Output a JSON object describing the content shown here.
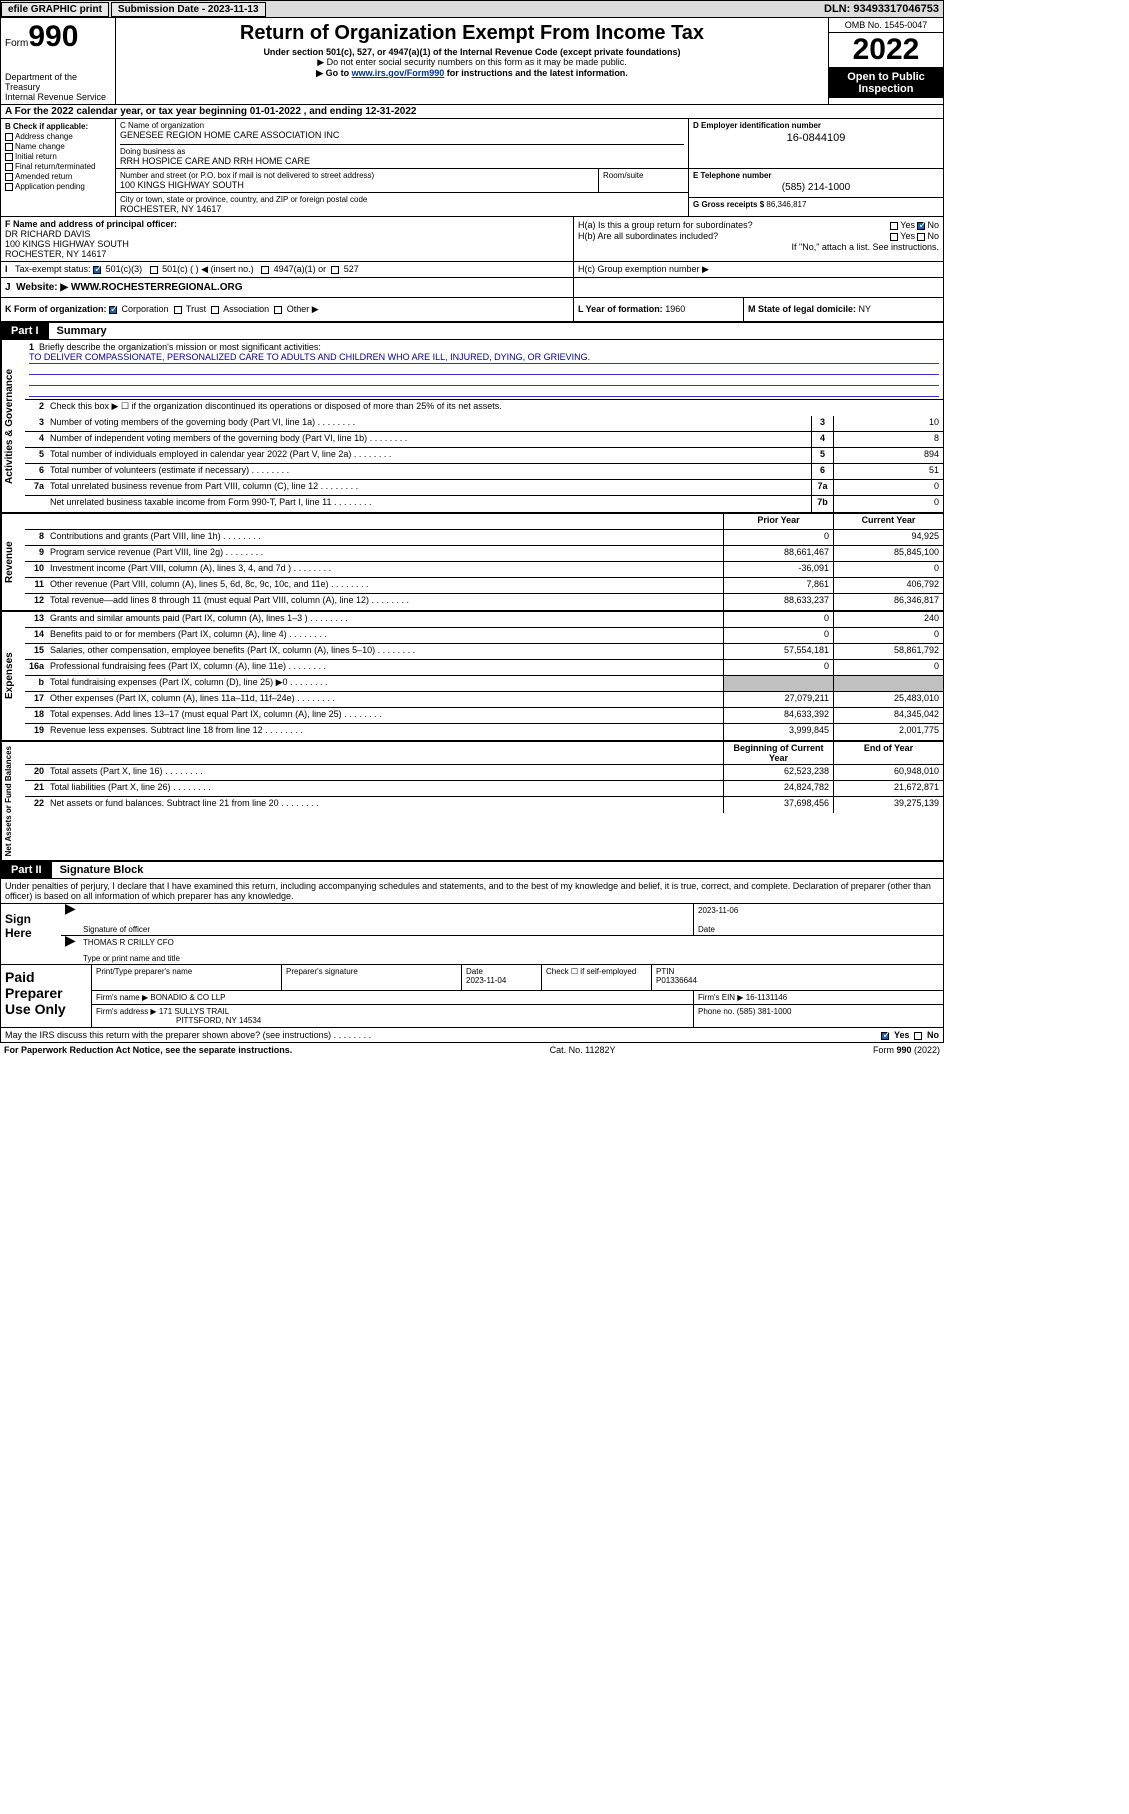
{
  "topbar": {
    "efile": "efile GRAPHIC print",
    "subdate_label": "Submission Date - 2023-11-13",
    "dln": "DLN: 93493317046753"
  },
  "header": {
    "form_label": "Form",
    "form_num": "990",
    "dept1": "Department of the Treasury",
    "dept2": "Internal Revenue Service",
    "title": "Return of Organization Exempt From Income Tax",
    "sub1": "Under section 501(c), 527, or 4947(a)(1) of the Internal Revenue Code (except private foundations)",
    "sub2": "▶ Do not enter social security numbers on this form as it may be made public.",
    "sub3a": "▶ Go to ",
    "sub3link": "www.irs.gov/Form990",
    "sub3b": " for instructions and the latest information.",
    "omb": "OMB No. 1545-0047",
    "year": "2022",
    "open1": "Open to Public",
    "open2": "Inspection"
  },
  "row_a": "A For the 2022 calendar year, or tax year beginning 01-01-2022    , and ending 12-31-2022",
  "col_b": {
    "hdr": "B Check if applicable:",
    "addr": "Address change",
    "name": "Name change",
    "init": "Initial return",
    "final": "Final return/terminated",
    "amend": "Amended return",
    "app": "Application pending"
  },
  "name_c": {
    "lbl": "C Name of organization",
    "val": "GENESEE REGION HOME CARE ASSOCIATION INC",
    "dba_lbl": "Doing business as",
    "dba": "RRH HOSPICE CARE AND RRH HOME CARE"
  },
  "ein": {
    "lbl": "D Employer identification number",
    "val": "16-0844109"
  },
  "addr": {
    "street_lbl": "Number and street (or P.O. box if mail is not delivered to street address)",
    "street": "100 KINGS HIGHWAY SOUTH",
    "room_lbl": "Room/suite",
    "city_lbl": "City or town, state or province, country, and ZIP or foreign postal code",
    "city": "ROCHESTER, NY  14617"
  },
  "phone": {
    "lbl": "E Telephone number",
    "val": "(585) 214-1000"
  },
  "gross": {
    "lbl": "G Gross receipts $",
    "val": "86,346,817"
  },
  "f": {
    "lbl": "F  Name and address of principal officer:",
    "l1": "DR RICHARD DAVIS",
    "l2": "100 KINGS HIGHWAY SOUTH",
    "l3": "ROCHESTER, NY  14617"
  },
  "h": {
    "a": "H(a)  Is this a group return for subordinates?",
    "a_yes": "Yes",
    "a_no": "No",
    "b": "H(b)  Are all subordinates included?",
    "b_yes": "Yes",
    "b_no": "No",
    "b2": "If \"No,\" attach a list. See instructions.",
    "c": "H(c)  Group exemption number ▶"
  },
  "taxexempt": {
    "lbl": "Tax-exempt status:",
    "o1": "501(c)(3)",
    "o2": "501(c) (  ) ◀ (insert no.)",
    "o3": "4947(a)(1) or",
    "o4": "527"
  },
  "j": {
    "lbl": "J",
    "web_lbl": "Website: ▶",
    "web": "WWW.ROCHESTERREGIONAL.ORG"
  },
  "k": {
    "lbl": "K Form of organization:",
    "corp": "Corporation",
    "trust": "Trust",
    "assoc": "Association",
    "other": "Other ▶"
  },
  "l": {
    "lbl": "L Year of formation:",
    "val": "1960"
  },
  "m": {
    "lbl": "M State of legal domicile:",
    "val": "NY"
  },
  "part1": {
    "lbl": "Part I",
    "title": "Summary"
  },
  "mission": {
    "q": "Briefly describe the organization's mission or most significant activities:",
    "txt": "TO DELIVER COMPASSIONATE, PERSONALIZED CARE TO ADULTS AND CHILDREN WHO ARE ILL, INJURED, DYING, OR GRIEVING."
  },
  "vtab": {
    "gov": "Activities & Governance",
    "rev": "Revenue",
    "exp": "Expenses",
    "net": "Net Assets or Fund Balances"
  },
  "lines_gov": [
    {
      "n": "2",
      "t": "Check this box ▶ ☐  if the organization discontinued its operations or disposed of more than 25% of its net assets."
    },
    {
      "n": "3",
      "t": "Number of voting members of the governing body (Part VI, line 1a)",
      "b": "3",
      "v": "10"
    },
    {
      "n": "4",
      "t": "Number of independent voting members of the governing body (Part VI, line 1b)",
      "b": "4",
      "v": "8"
    },
    {
      "n": "5",
      "t": "Total number of individuals employed in calendar year 2022 (Part V, line 2a)",
      "b": "5",
      "v": "894"
    },
    {
      "n": "6",
      "t": "Total number of volunteers (estimate if necessary)",
      "b": "6",
      "v": "51"
    },
    {
      "n": "7a",
      "t": "Total unrelated business revenue from Part VIII, column (C), line 12",
      "b": "7a",
      "v": "0"
    },
    {
      "n": "",
      "t": "Net unrelated business taxable income from Form 990-T, Part I, line 11",
      "b": "7b",
      "v": "0"
    }
  ],
  "col_hdrs": {
    "prior": "Prior Year",
    "curr": "Current Year",
    "beg": "Beginning of Current Year",
    "end": "End of Year"
  },
  "lines_rev": [
    {
      "n": "8",
      "t": "Contributions and grants (Part VIII, line 1h)",
      "p": "0",
      "c": "94,925"
    },
    {
      "n": "9",
      "t": "Program service revenue (Part VIII, line 2g)",
      "p": "88,661,467",
      "c": "85,845,100"
    },
    {
      "n": "10",
      "t": "Investment income (Part VIII, column (A), lines 3, 4, and 7d )",
      "p": "-36,091",
      "c": "0"
    },
    {
      "n": "11",
      "t": "Other revenue (Part VIII, column (A), lines 5, 6d, 8c, 9c, 10c, and 11e)",
      "p": "7,861",
      "c": "406,792"
    },
    {
      "n": "12",
      "t": "Total revenue—add lines 8 through 11 (must equal Part VIII, column (A), line 12)",
      "p": "88,633,237",
      "c": "86,346,817"
    }
  ],
  "lines_exp": [
    {
      "n": "13",
      "t": "Grants and similar amounts paid (Part IX, column (A), lines 1–3 )",
      "p": "0",
      "c": "240"
    },
    {
      "n": "14",
      "t": "Benefits paid to or for members (Part IX, column (A), line 4)",
      "p": "0",
      "c": "0"
    },
    {
      "n": "15",
      "t": "Salaries, other compensation, employee benefits (Part IX, column (A), lines 5–10)",
      "p": "57,554,181",
      "c": "58,861,792"
    },
    {
      "n": "16a",
      "t": "Professional fundraising fees (Part IX, column (A), line 11e)",
      "p": "0",
      "c": "0"
    },
    {
      "n": "b",
      "t": "Total fundraising expenses (Part IX, column (D), line 25) ▶0",
      "p": "grey",
      "c": "grey"
    },
    {
      "n": "17",
      "t": "Other expenses (Part IX, column (A), lines 11a–11d, 11f–24e)",
      "p": "27,079,211",
      "c": "25,483,010"
    },
    {
      "n": "18",
      "t": "Total expenses. Add lines 13–17 (must equal Part IX, column (A), line 25)",
      "p": "84,633,392",
      "c": "84,345,042"
    },
    {
      "n": "19",
      "t": "Revenue less expenses. Subtract line 18 from line 12",
      "p": "3,999,845",
      "c": "2,001,775"
    }
  ],
  "lines_net": [
    {
      "n": "20",
      "t": "Total assets (Part X, line 16)",
      "p": "62,523,238",
      "c": "60,948,010"
    },
    {
      "n": "21",
      "t": "Total liabilities (Part X, line 26)",
      "p": "24,824,782",
      "c": "21,672,871"
    },
    {
      "n": "22",
      "t": "Net assets or fund balances. Subtract line 21 from line 20",
      "p": "37,698,456",
      "c": "39,275,139"
    }
  ],
  "part2": {
    "lbl": "Part II",
    "title": "Signature Block"
  },
  "penalty": "Under penalties of perjury, I declare that I have examined this return, including accompanying schedules and statements, and to the best of my knowledge and belief, it is true, correct, and complete. Declaration of preparer (other than officer) is based on all information of which preparer has any knowledge.",
  "sign": {
    "here": "Sign Here",
    "sigoff": "Signature of officer",
    "date": "Date",
    "date_val": "2023-11-06",
    "name": "THOMAS R CRILLY CFO",
    "name_lbl": "Type or print name and title"
  },
  "prep": {
    "lbl": "Paid Preparer Use Only",
    "name_lbl": "Print/Type preparer's name",
    "sig_lbl": "Preparer's signature",
    "date_lbl": "Date",
    "date": "2023-11-04",
    "self": "Check ☐  if self-employed",
    "ptin_lbl": "PTIN",
    "ptin": "P01336644",
    "firm_lbl": "Firm's name    ▶",
    "firm": "BONADIO & CO LLP",
    "ein_lbl": "Firm's EIN ▶",
    "ein": "16-1131146",
    "addr_lbl": "Firm's address ▶",
    "addr1": "171 SULLYS TRAIL",
    "addr2": "PITTSFORD, NY  14534",
    "phone_lbl": "Phone no.",
    "phone": "(585) 381-1000"
  },
  "discuss": {
    "txt": "May the IRS discuss this return with the preparer shown above? (see instructions)",
    "yes": "Yes",
    "no": "No"
  },
  "footer": {
    "l": "For Paperwork Reduction Act Notice, see the separate instructions.",
    "m": "Cat. No. 11282Y",
    "r": "Form 990 (2022)"
  }
}
